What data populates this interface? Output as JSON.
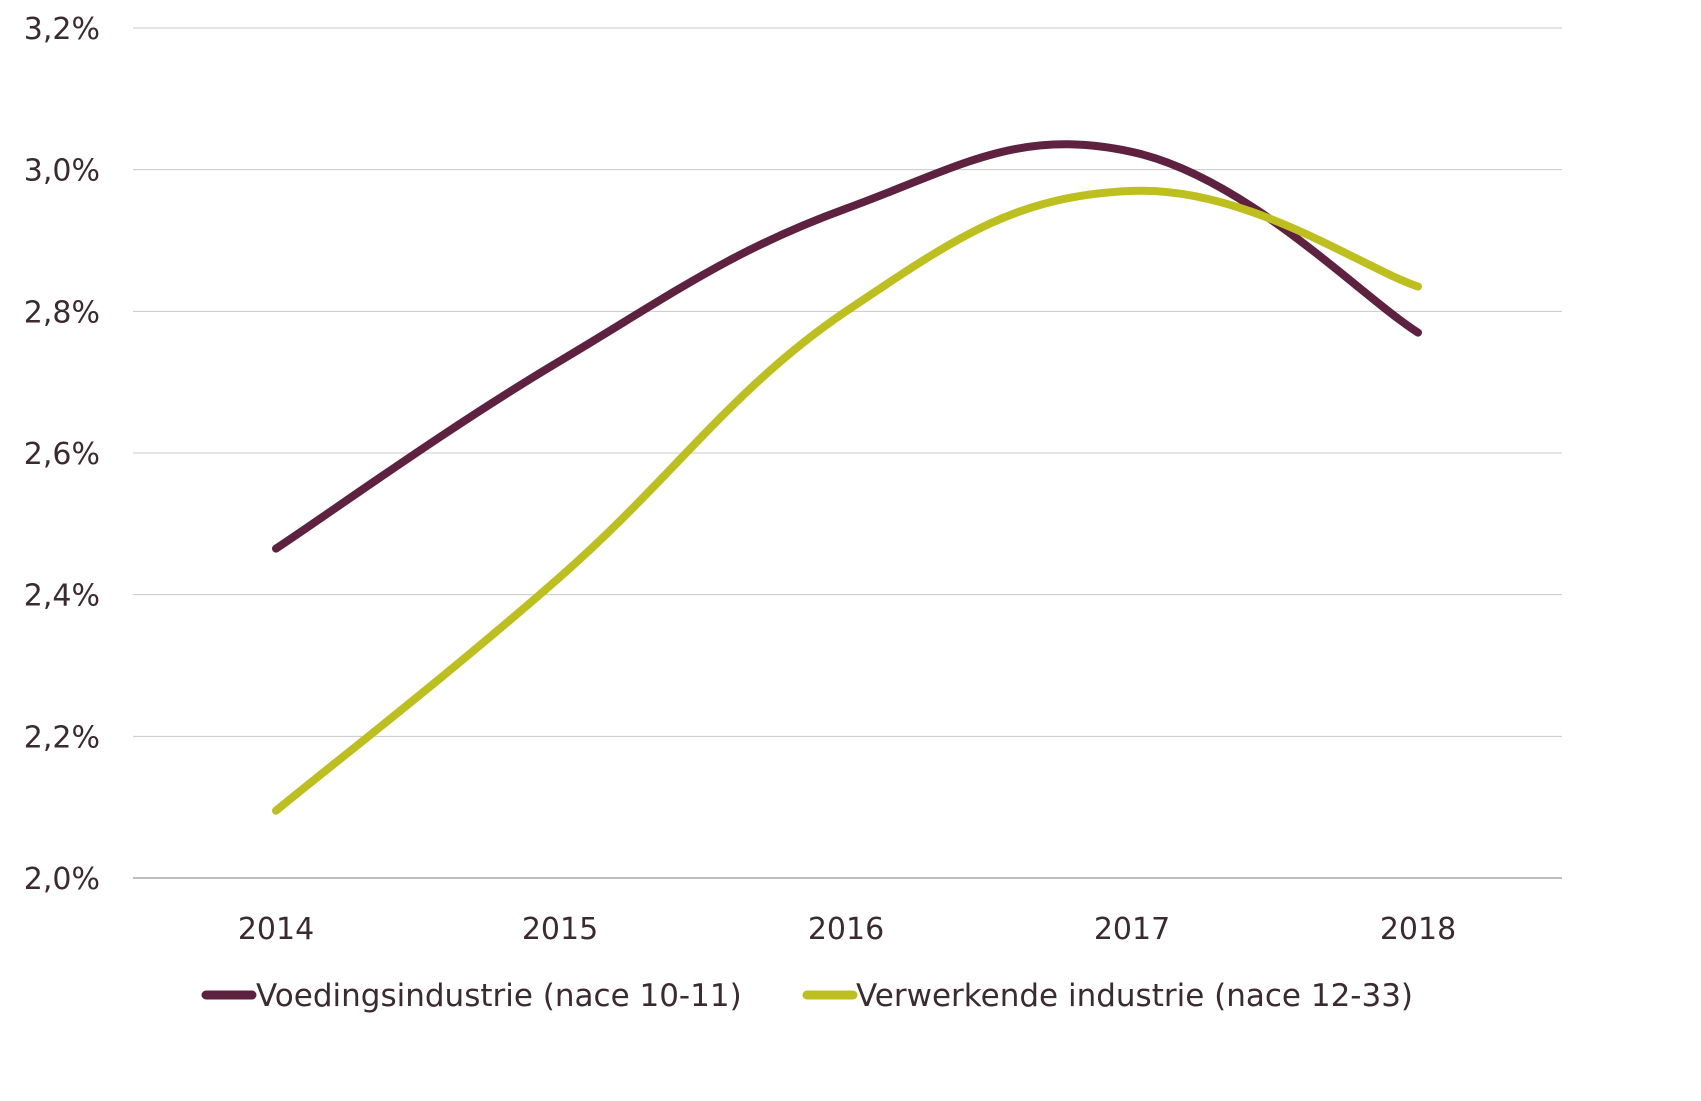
{
  "chart_data": {
    "type": "line",
    "smooth": true,
    "categories": [
      "2014",
      "2015",
      "2016",
      "2017",
      "2018"
    ],
    "ylim": [
      2.0,
      3.2
    ],
    "yticks": [
      2.0,
      2.2,
      2.4,
      2.6,
      2.8,
      3.0,
      3.2
    ],
    "ytick_labels": [
      "2,0%",
      "2,2%",
      "2,4%",
      "2,6%",
      "2,8%",
      "3,0%",
      "3,2%"
    ],
    "grid": "horizontal",
    "legend_position": "bottom",
    "series": [
      {
        "name": "Voedingsindustrie (nace 10-11)",
        "color": "#5e2140",
        "values": [
          2.465,
          2.73,
          2.945,
          3.025,
          2.77
        ]
      },
      {
        "name": "Verwerkende industrie (nace 12-33)",
        "color": "#bdbf1f",
        "values": [
          2.095,
          2.425,
          2.8,
          2.97,
          2.835
        ]
      }
    ]
  }
}
